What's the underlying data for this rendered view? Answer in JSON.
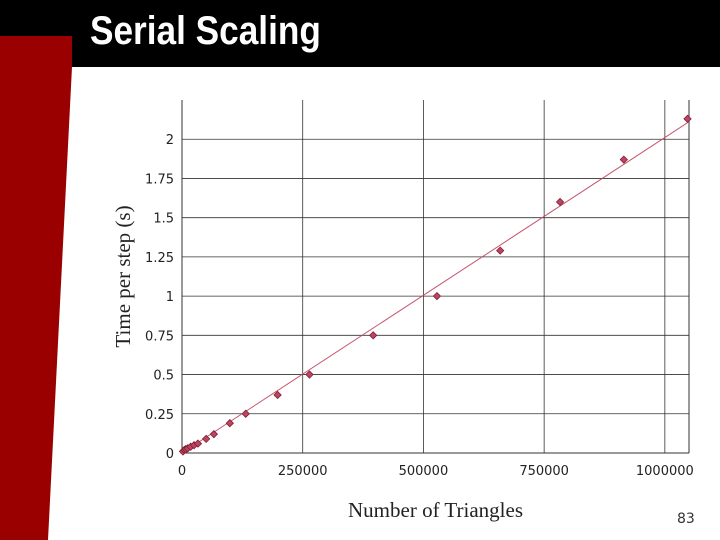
{
  "slide": {
    "title": "Serial Scaling",
    "page_number": "83"
  },
  "colors": {
    "title_bar": "#000000",
    "accent_red": "#9a0000",
    "series": "#c0445f",
    "marker": "#c0445f",
    "grid": "#333333"
  },
  "chart_data": {
    "type": "scatter",
    "title": "",
    "xlabel": "Number of Triangles",
    "ylabel": "Time per step (s)",
    "xlim": [
      0,
      1050000
    ],
    "ylim": [
      0,
      2.25
    ],
    "x_ticks": [
      0,
      250000,
      500000,
      750000,
      1000000
    ],
    "x_tick_labels": [
      "0",
      "250000",
      "500000",
      "750000",
      "1000000"
    ],
    "y_ticks": [
      0,
      0.25,
      0.5,
      0.75,
      1,
      1.25,
      1.5,
      1.75,
      2
    ],
    "y_tick_labels": [
      "0",
      "0.25",
      "0.5",
      "0.75",
      "1",
      "1.25",
      "1.5",
      "1.75",
      "2"
    ],
    "grid": true,
    "legend": "none",
    "series": [
      {
        "marker": "diamond",
        "trendline": true,
        "points": [
          [
            2000,
            0.01
          ],
          [
            5000,
            0.02
          ],
          [
            8000,
            0.025
          ],
          [
            12000,
            0.03
          ],
          [
            18000,
            0.04
          ],
          [
            25000,
            0.05
          ],
          [
            33000,
            0.06
          ],
          [
            50000,
            0.09
          ],
          [
            66000,
            0.12
          ],
          [
            99000,
            0.19
          ],
          [
            132000,
            0.25
          ],
          [
            198000,
            0.37
          ],
          [
            264000,
            0.5
          ],
          [
            396000,
            0.75
          ],
          [
            528000,
            1.0
          ],
          [
            659000,
            1.29
          ],
          [
            783000,
            1.6
          ],
          [
            915000,
            1.87
          ],
          [
            1047000,
            2.13
          ]
        ]
      }
    ]
  }
}
